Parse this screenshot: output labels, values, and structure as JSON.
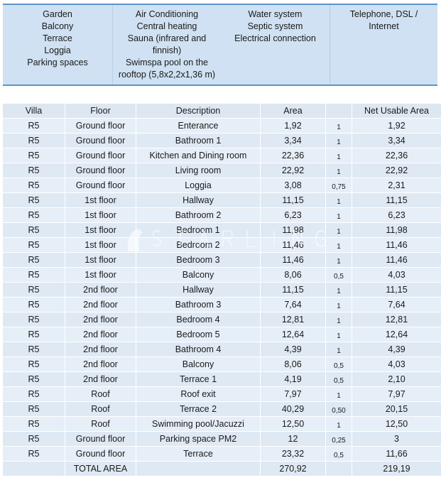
{
  "features": {
    "col1": [
      "Garden",
      "Balcony",
      "Terrace",
      "Loggia",
      "Parking spaces"
    ],
    "col2": [
      "Air Conditioning",
      "Central heating",
      "Sauna (infrared and",
      "finnish)",
      "Swimspa pool on the",
      "rooftop (5,8x2,2x1,36 m)"
    ],
    "col3": [
      "Water system",
      "Septic system",
      "Electrical connection"
    ],
    "col4": [
      "Telephone, DSL /",
      "Internet"
    ]
  },
  "table": {
    "headers": [
      "Villa",
      "Floor",
      "Description",
      "Area",
      "",
      "Net Usable Area"
    ],
    "rows": [
      [
        "R5",
        "Ground floor",
        "Enterance",
        "1,92",
        "1",
        "1,92"
      ],
      [
        "R5",
        "Ground floor",
        "Bathroom 1",
        "3,34",
        "1",
        "3,34"
      ],
      [
        "R5",
        "Ground floor",
        "Kitchen and Dining room",
        "22,36",
        "1",
        "22,36"
      ],
      [
        "R5",
        "Ground floor",
        "Living room",
        "22,92",
        "1",
        "22,92"
      ],
      [
        "R5",
        "Ground floor",
        "Loggia",
        "3,08",
        "0,75",
        "2,31"
      ],
      [
        "R5",
        "1st floor",
        "Hallway",
        "11,15",
        "1",
        "11,15"
      ],
      [
        "R5",
        "1st floor",
        "Bathroom 2",
        "6,23",
        "1",
        "6,23"
      ],
      [
        "R5",
        "1st floor",
        "Bedroom 1",
        "11,98",
        "1",
        "11,98"
      ],
      [
        "R5",
        "1st floor",
        "Bedroom 2",
        "11,46",
        "1",
        "11,46"
      ],
      [
        "R5",
        "1st floor",
        "Bedroom 3",
        "11,46",
        "1",
        "11,46"
      ],
      [
        "R5",
        "1st floor",
        "Balcony",
        "8,06",
        "0,5",
        "4,03"
      ],
      [
        "R5",
        "2nd floor",
        "Hallway",
        "11,15",
        "1",
        "11,15"
      ],
      [
        "R5",
        "2nd floor",
        "Bathroom 3",
        "7,64",
        "1",
        "7,64"
      ],
      [
        "R5",
        "2nd floor",
        "Bedroom 4",
        "12,81",
        "1",
        "12,81"
      ],
      [
        "R5",
        "2nd floor",
        "Bedroom 5",
        "12,64",
        "1",
        "12,64"
      ],
      [
        "R5",
        "2nd floor",
        "Bathroom 4",
        "4,39",
        "1",
        "4,39"
      ],
      [
        "R5",
        "2nd floor",
        "Balcony",
        "8,06",
        "0,5",
        "4,03"
      ],
      [
        "R5",
        "2nd floor",
        "Terrace 1",
        "4,19",
        "0,5",
        "2,10"
      ],
      [
        "R5",
        "Roof",
        "Roof exit",
        "7,97",
        "1",
        "7,97"
      ],
      [
        "R5",
        "Roof",
        "Terrace 2",
        "40,29",
        "0,50",
        "20,15"
      ],
      [
        "R5",
        "Roof",
        "Swimming pool/Jacuzzi",
        "12,50",
        "1",
        "12,50"
      ],
      [
        "R5",
        "Ground floor",
        "Parking space PM2",
        "12",
        "0,25",
        "3"
      ],
      [
        "R5",
        "Ground floor",
        "Terrace",
        "23,32",
        "0,5",
        "11,66"
      ]
    ],
    "total": [
      "",
      "TOTAL AREA",
      "",
      "270,92",
      "",
      "219,19"
    ]
  },
  "watermark": "STARLING",
  "colors": {
    "header_bg": "#cfe1f2",
    "border": "#5d93c9",
    "row_bg": "#dfe9f4"
  }
}
